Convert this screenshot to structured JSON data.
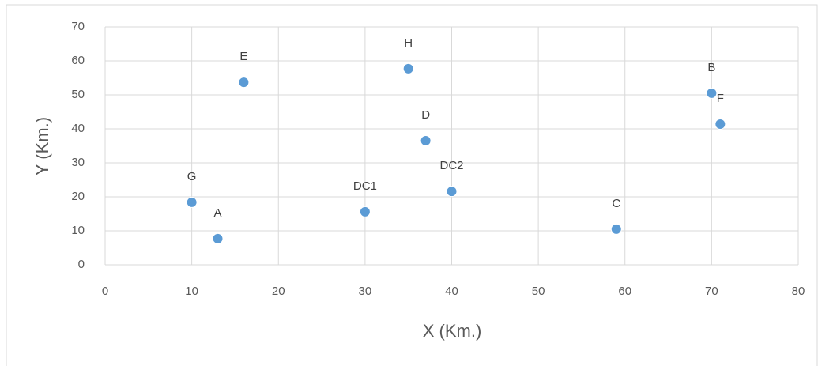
{
  "chart_data": {
    "type": "scatter",
    "xlabel": "X (Km.)",
    "ylabel": "Y (Km.)",
    "series": [
      {
        "color": "#5b9bd5",
        "labels": [
          "G",
          "A",
          "E",
          "DC1",
          "H",
          "D",
          "DC2",
          "C",
          "B",
          "F"
        ],
        "x": [
          10,
          13,
          16,
          30,
          35,
          37,
          40,
          59,
          70,
          71
        ],
        "values": [
          18.4,
          7.7,
          53.7,
          15.6,
          57.7,
          36.5,
          21.6,
          10.5,
          50.5,
          41.4
        ]
      }
    ],
    "xlim": [
      0,
      80
    ],
    "xticks": [
      0,
      10,
      20,
      30,
      40,
      50,
      60,
      70,
      80
    ],
    "ylim": [
      0,
      70
    ],
    "yticks": [
      0,
      10,
      20,
      30,
      40,
      50,
      60,
      70
    ],
    "grid": true
  }
}
